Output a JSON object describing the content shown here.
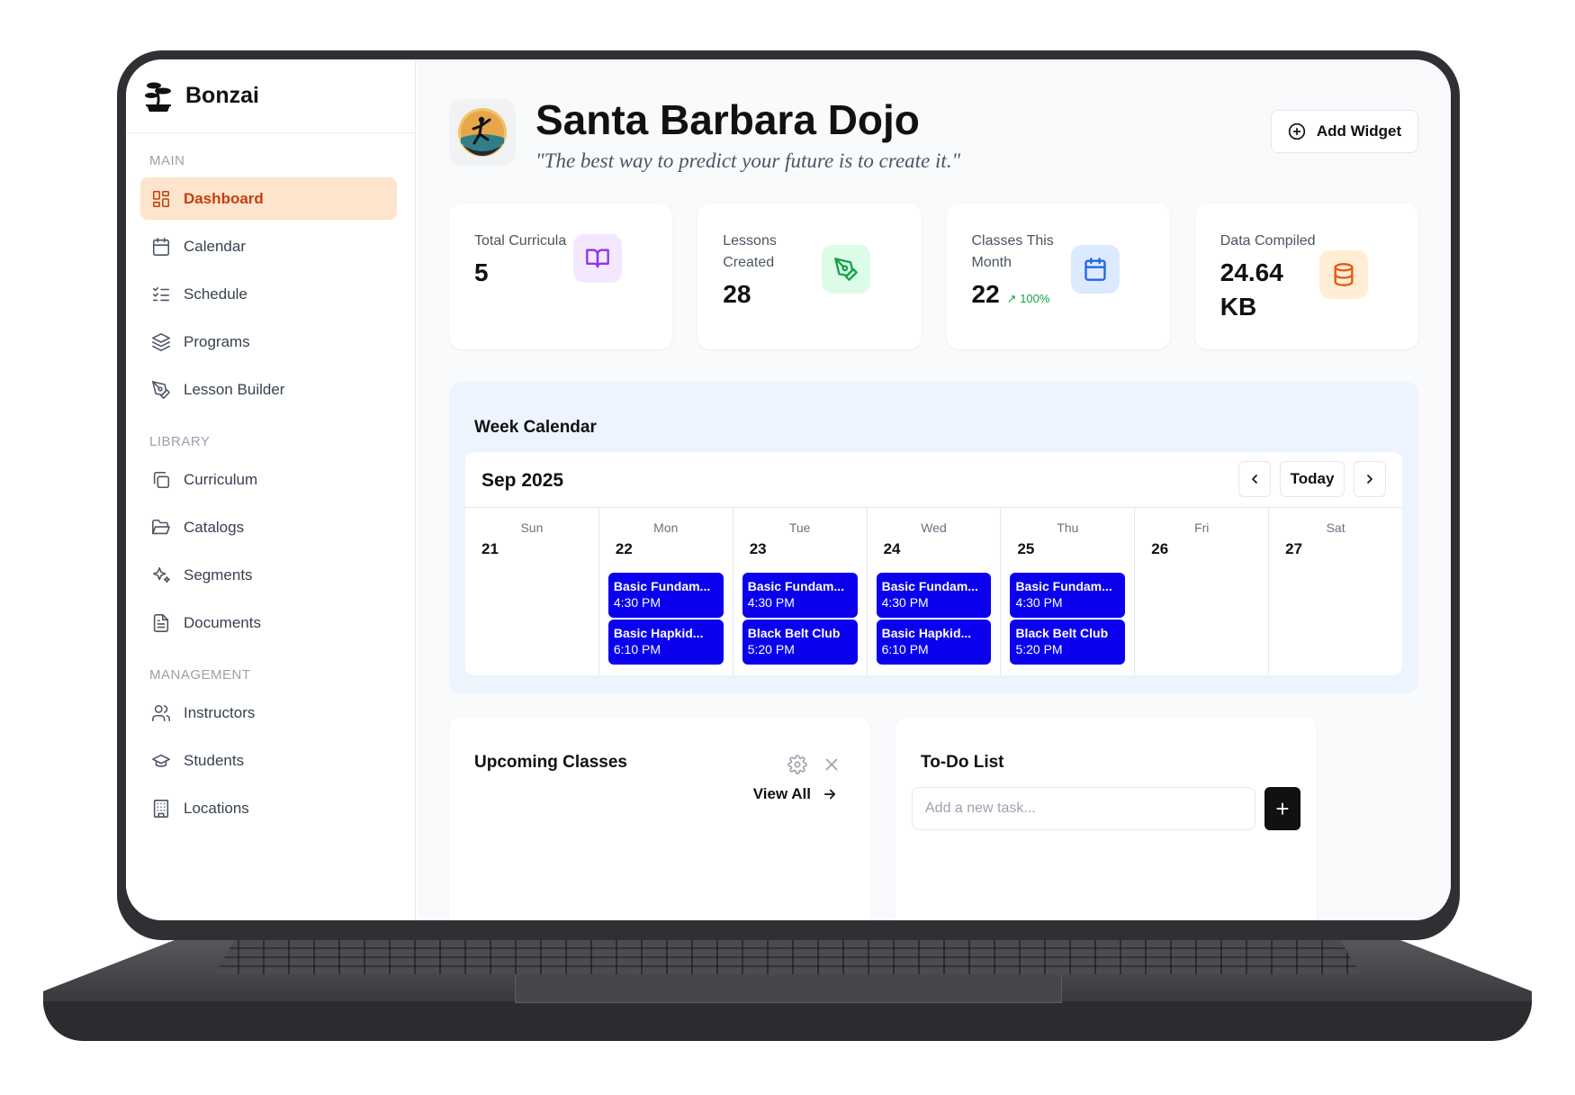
{
  "app": {
    "brand": "Bonzai"
  },
  "sidebar": {
    "sections": [
      {
        "label": "MAIN",
        "items": [
          {
            "label": "Dashboard",
            "icon": "dashboard-grid-icon",
            "active": true
          },
          {
            "label": "Calendar",
            "icon": "calendar-icon"
          },
          {
            "label": "Schedule",
            "icon": "list-checks-icon"
          },
          {
            "label": "Programs",
            "icon": "layers-icon"
          },
          {
            "label": "Lesson Builder",
            "icon": "pen-tool-icon"
          }
        ]
      },
      {
        "label": "LIBRARY",
        "items": [
          {
            "label": "Curriculum",
            "icon": "copy-icon"
          },
          {
            "label": "Catalogs",
            "icon": "folder-open-icon"
          },
          {
            "label": "Segments",
            "icon": "sparkles-icon"
          },
          {
            "label": "Documents",
            "icon": "document-icon"
          }
        ]
      },
      {
        "label": "MANAGEMENT",
        "items": [
          {
            "label": "Instructors",
            "icon": "users-icon"
          },
          {
            "label": "Students",
            "icon": "graduation-cap-icon"
          },
          {
            "label": "Locations",
            "icon": "building-icon"
          }
        ]
      }
    ]
  },
  "header": {
    "title": "Santa Barbara Dojo",
    "quote": "\"The best way to predict your future is to create it.\"",
    "add_widget_label": "Add Widget"
  },
  "stats": [
    {
      "label": "Total Curricula",
      "value": "5",
      "icon": "book-open-icon",
      "color": "#9333ea",
      "bg": "#f3e8ff"
    },
    {
      "label": "Lessons Created",
      "value": "28",
      "icon": "pen-tool-icon",
      "color": "#16a34a",
      "bg": "#dcfce7"
    },
    {
      "label": "Classes This Month",
      "value": "22",
      "trend": "100%",
      "icon": "calendar-icon",
      "color": "#2563eb",
      "bg": "#dbeafe"
    },
    {
      "label": "Data Compiled",
      "value": "24.64 KB",
      "icon": "database-icon",
      "color": "#ea580c",
      "bg": "#ffedd5"
    }
  ],
  "week_calendar": {
    "title": "Week Calendar",
    "month": "Sep 2025",
    "today_label": "Today",
    "days": [
      {
        "dow": "Sun",
        "date": "21",
        "events": []
      },
      {
        "dow": "Mon",
        "date": "22",
        "events": [
          {
            "title": "Basic Fundam...",
            "time": "4:30 PM"
          },
          {
            "title": "Basic Hapkid...",
            "time": "6:10 PM"
          }
        ]
      },
      {
        "dow": "Tue",
        "date": "23",
        "events": [
          {
            "title": "Basic Fundam...",
            "time": "4:30 PM"
          },
          {
            "title": "Black Belt Club",
            "time": "5:20 PM"
          }
        ]
      },
      {
        "dow": "Wed",
        "date": "24",
        "events": [
          {
            "title": "Basic Fundam...",
            "time": "4:30 PM"
          },
          {
            "title": "Basic Hapkid...",
            "time": "6:10 PM"
          }
        ]
      },
      {
        "dow": "Thu",
        "date": "25",
        "events": [
          {
            "title": "Basic Fundam...",
            "time": "4:30 PM"
          },
          {
            "title": "Black Belt Club",
            "time": "5:20 PM"
          }
        ]
      },
      {
        "dow": "Fri",
        "date": "26",
        "events": []
      },
      {
        "dow": "Sat",
        "date": "27",
        "events": []
      }
    ],
    "event_color": "#0a00ee"
  },
  "upcoming": {
    "title": "Upcoming Classes",
    "view_all_label": "View All"
  },
  "todo": {
    "title": "To-Do List",
    "input_placeholder": "Add a new task...",
    "add_label": "+"
  }
}
